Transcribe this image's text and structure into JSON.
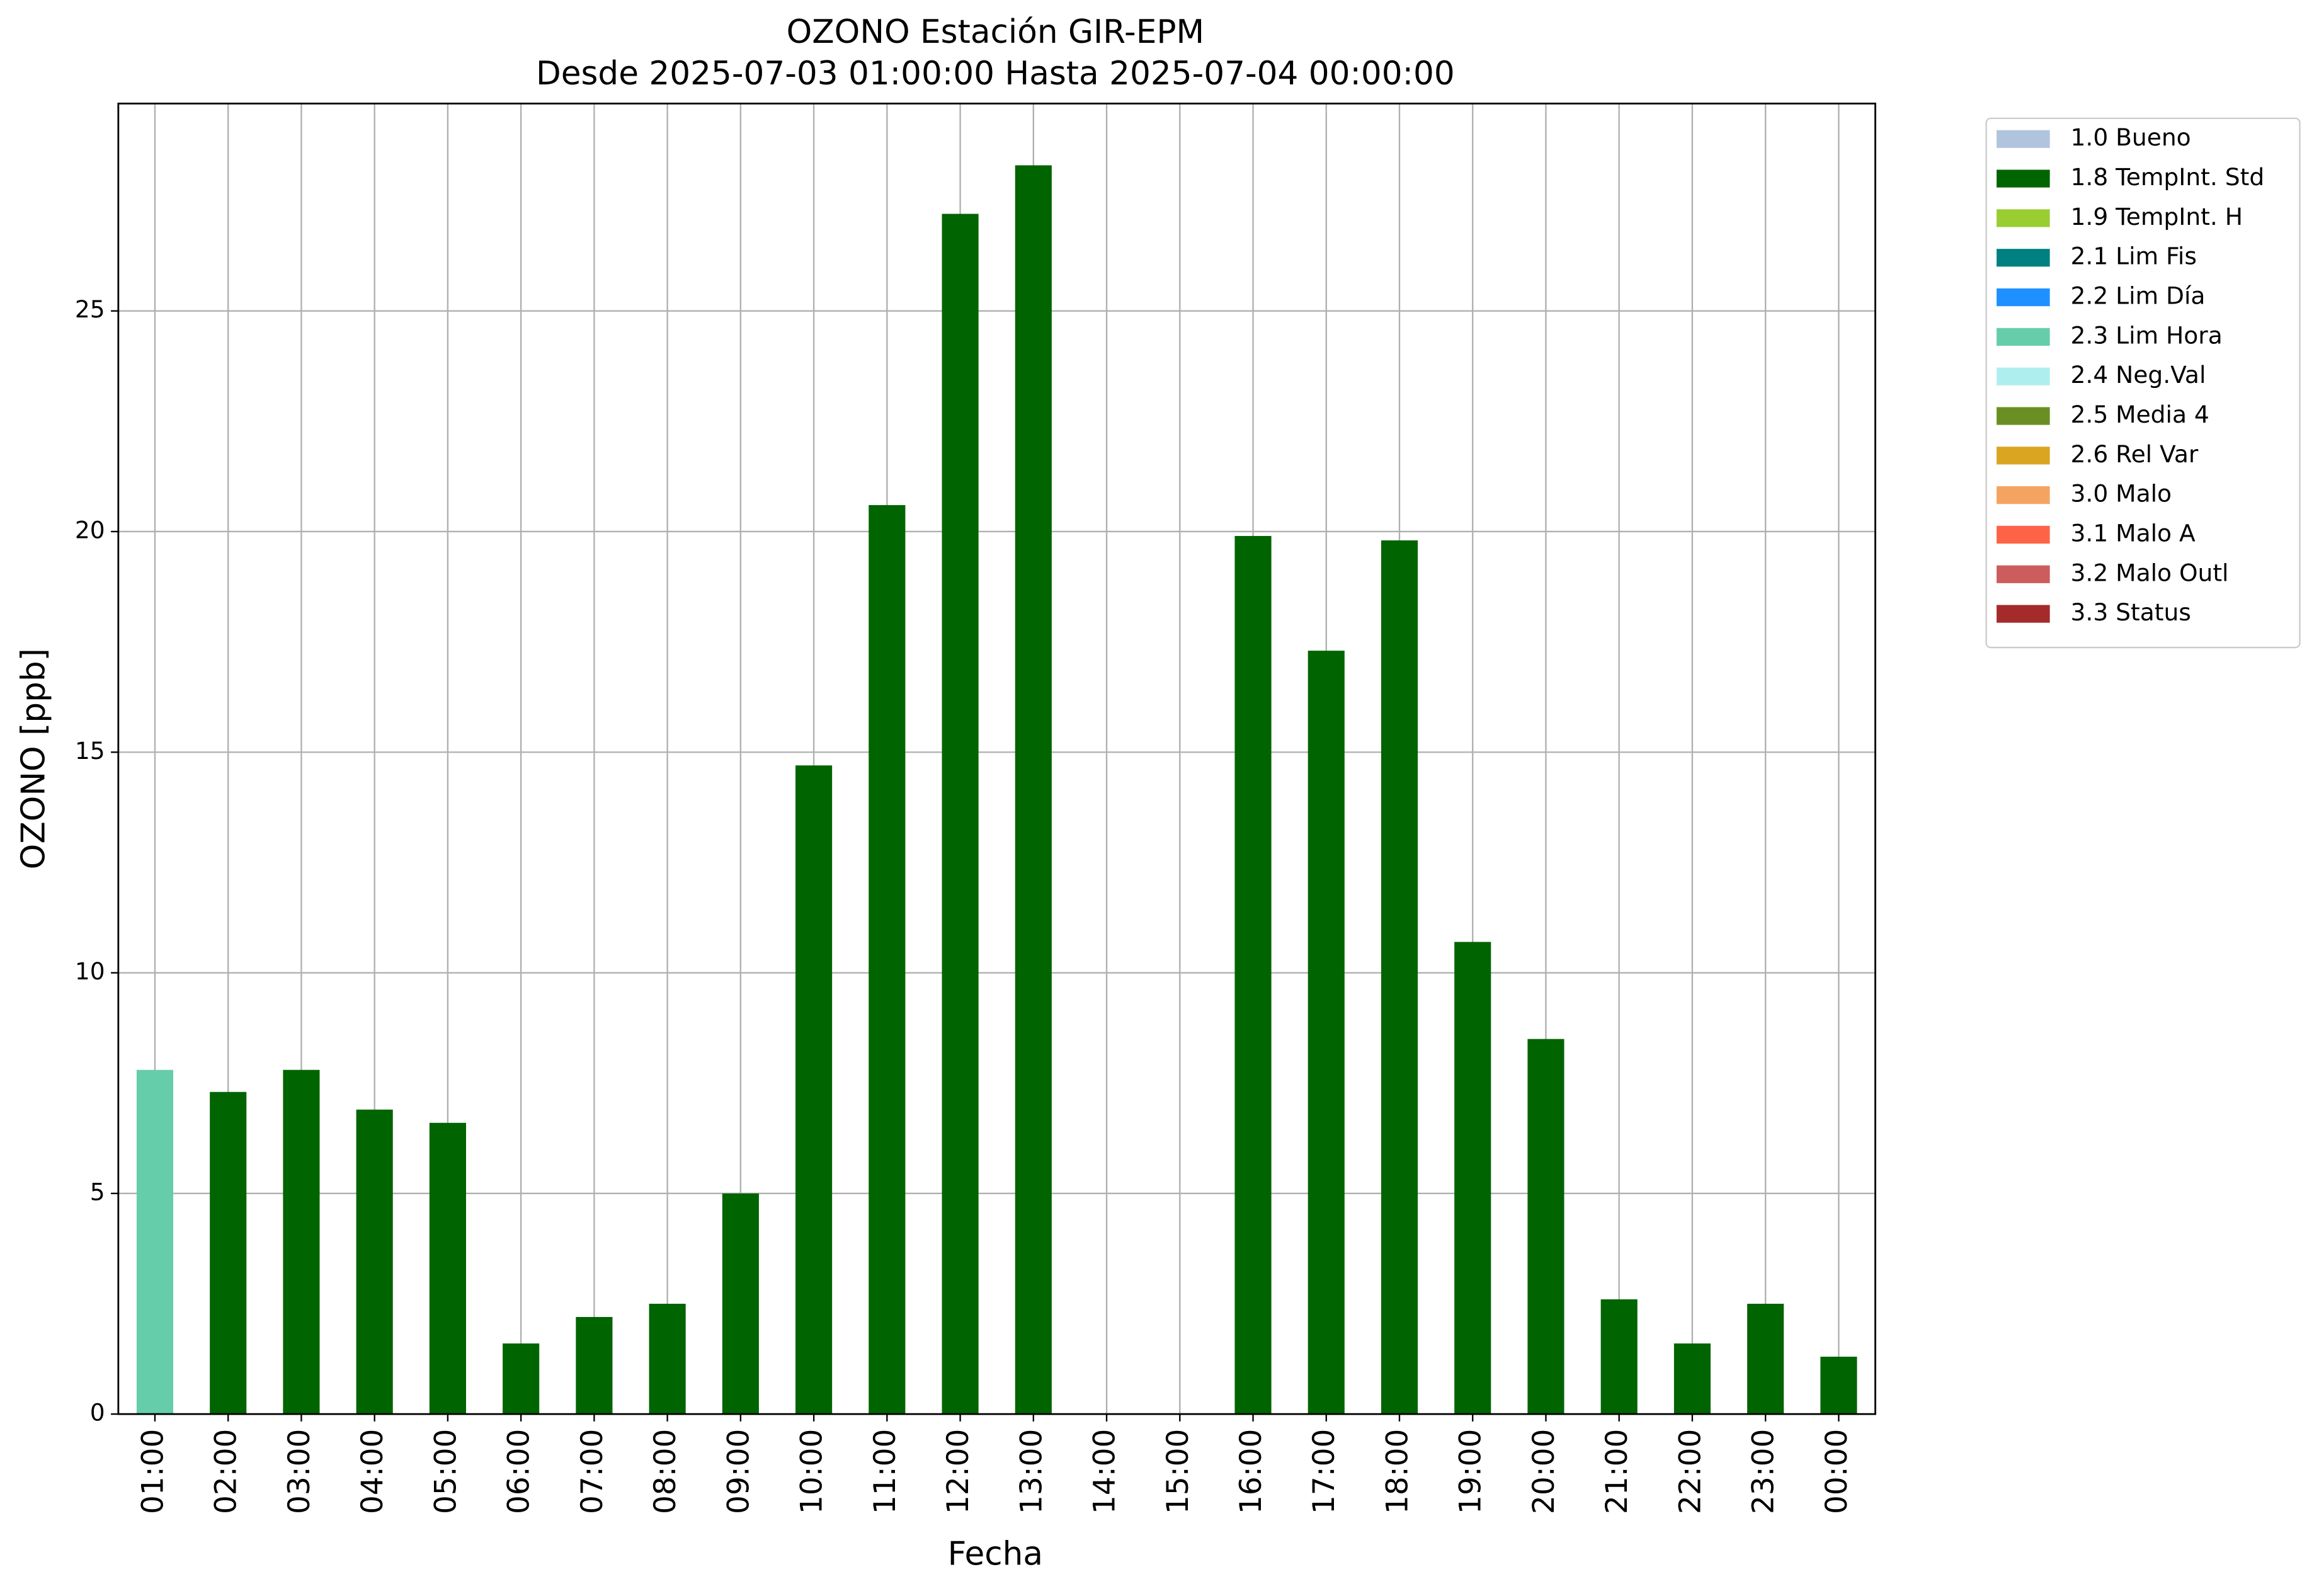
{
  "chart_data": {
    "type": "bar",
    "title": "OZONO Estación GIR-EPM",
    "subtitle": "Desde 2025-07-03 01:00:00 Hasta 2025-07-04 00:00:00",
    "x_label": "Fecha",
    "y_label": "OZONO [ppb]",
    "categories": [
      "01:00",
      "02:00",
      "03:00",
      "04:00",
      "05:00",
      "06:00",
      "07:00",
      "08:00",
      "09:00",
      "10:00",
      "11:00",
      "12:00",
      "13:00",
      "14:00",
      "15:00",
      "16:00",
      "17:00",
      "18:00",
      "19:00",
      "20:00",
      "21:00",
      "22:00",
      "23:00",
      "00:00"
    ],
    "series": [
      {
        "name": "1.0 Bueno",
        "color": "#b0c4de",
        "values": [
          null,
          null,
          null,
          null,
          null,
          null,
          null,
          null,
          null,
          null,
          null,
          null,
          null,
          null,
          null,
          null,
          null,
          null,
          null,
          null,
          null,
          null,
          null,
          null
        ]
      },
      {
        "name": "1.8 TempInt. Std",
        "color": "#006400",
        "values": [
          null,
          7.3,
          7.8,
          6.9,
          6.6,
          1.6,
          2.2,
          2.5,
          5.0,
          14.7,
          20.6,
          27.2,
          28.3,
          null,
          null,
          19.9,
          17.3,
          19.8,
          10.7,
          8.5,
          2.6,
          1.6,
          2.5,
          1.3
        ]
      },
      {
        "name": "1.9 TempInt. H",
        "color": "#9acd32",
        "values": [
          null,
          null,
          null,
          null,
          null,
          null,
          null,
          null,
          null,
          null,
          null,
          null,
          null,
          null,
          null,
          null,
          null,
          null,
          null,
          null,
          null,
          null,
          null,
          null
        ]
      },
      {
        "name": "2.1 Lim Fis",
        "color": "#008080",
        "values": [
          null,
          null,
          null,
          null,
          null,
          null,
          null,
          null,
          null,
          null,
          null,
          null,
          null,
          null,
          null,
          null,
          null,
          null,
          null,
          null,
          null,
          null,
          null,
          null
        ]
      },
      {
        "name": "2.2 Lim Día",
        "color": "#1e90ff",
        "values": [
          null,
          null,
          null,
          null,
          null,
          null,
          null,
          null,
          null,
          null,
          null,
          null,
          null,
          null,
          null,
          null,
          null,
          null,
          null,
          null,
          null,
          null,
          null,
          null
        ]
      },
      {
        "name": "2.3 Lim Hora",
        "color": "#66cdaa",
        "values": [
          7.8,
          null,
          null,
          null,
          null,
          null,
          null,
          null,
          null,
          null,
          null,
          null,
          null,
          null,
          null,
          null,
          null,
          null,
          null,
          null,
          null,
          null,
          null,
          null
        ]
      },
      {
        "name": "2.4 Neg.Val",
        "color": "#afeeee",
        "values": [
          null,
          null,
          null,
          null,
          null,
          null,
          null,
          null,
          null,
          null,
          null,
          null,
          null,
          null,
          null,
          null,
          null,
          null,
          null,
          null,
          null,
          null,
          null,
          null
        ]
      },
      {
        "name": "2.5 Media 4",
        "color": "#6b8e23",
        "values": [
          null,
          null,
          null,
          null,
          null,
          null,
          null,
          null,
          null,
          null,
          null,
          null,
          null,
          null,
          null,
          null,
          null,
          null,
          null,
          null,
          null,
          null,
          null,
          null
        ]
      },
      {
        "name": "2.6 Rel Var",
        "color": "#daa520",
        "values": [
          null,
          null,
          null,
          null,
          null,
          null,
          null,
          null,
          null,
          null,
          null,
          null,
          null,
          null,
          null,
          null,
          null,
          null,
          null,
          null,
          null,
          null,
          null,
          null
        ]
      },
      {
        "name": "3.0 Malo",
        "color": "#f4a460",
        "values": [
          null,
          null,
          null,
          null,
          null,
          null,
          null,
          null,
          null,
          null,
          null,
          null,
          null,
          null,
          null,
          null,
          null,
          null,
          null,
          null,
          null,
          null,
          null,
          null
        ]
      },
      {
        "name": "3.1 Malo A",
        "color": "#ff6347",
        "values": [
          null,
          null,
          null,
          null,
          null,
          null,
          null,
          null,
          null,
          null,
          null,
          null,
          null,
          null,
          null,
          null,
          null,
          null,
          null,
          null,
          null,
          null,
          null,
          null
        ]
      },
      {
        "name": "3.2 Malo Outl",
        "color": "#cd5c5c",
        "values": [
          null,
          null,
          null,
          null,
          null,
          null,
          null,
          null,
          null,
          null,
          null,
          null,
          null,
          null,
          null,
          null,
          null,
          null,
          null,
          null,
          null,
          null,
          null,
          null
        ]
      },
      {
        "name": "3.3 Status",
        "color": "#a52a2a",
        "values": [
          null,
          null,
          null,
          null,
          null,
          null,
          null,
          null,
          null,
          null,
          null,
          null,
          null,
          null,
          null,
          null,
          null,
          null,
          null,
          null,
          null,
          null,
          null,
          null
        ]
      }
    ],
    "ylim": [
      0,
      29.7
    ],
    "yticks": [
      0,
      5,
      10,
      15,
      20,
      25
    ],
    "grid": true,
    "legend": "outside-right"
  }
}
